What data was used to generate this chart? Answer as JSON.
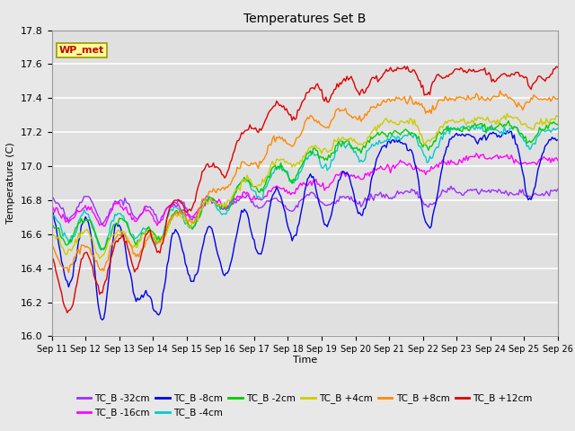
{
  "title": "Temperatures Set B",
  "xlabel": "Time",
  "ylabel": "Temperature (C)",
  "ylim": [
    16.0,
    17.8
  ],
  "y_ticks": [
    16.0,
    16.2,
    16.4,
    16.6,
    16.8,
    17.0,
    17.2,
    17.4,
    17.6,
    17.8
  ],
  "x_tick_labels": [
    "Sep 11",
    "Sep 12",
    "Sep 13",
    "Sep 14",
    "Sep 15",
    "Sep 16",
    "Sep 17",
    "Sep 18",
    "Sep 19",
    "Sep 20",
    "Sep 21",
    "Sep 22",
    "Sep 23",
    "Sep 24",
    "Sep 25",
    "Sep 26"
  ],
  "series": [
    {
      "label": "TC_B -32cm",
      "color": "#9b30ff"
    },
    {
      "label": "TC_B -16cm",
      "color": "#ff00ff"
    },
    {
      "label": "TC_B -8cm",
      "color": "#0000ee"
    },
    {
      "label": "TC_B -4cm",
      "color": "#00cccc"
    },
    {
      "label": "TC_B -2cm",
      "color": "#00cc00"
    },
    {
      "label": "TC_B +4cm",
      "color": "#cccc00"
    },
    {
      "label": "TC_B +8cm",
      "color": "#ff8800"
    },
    {
      "label": "TC_B +12cm",
      "color": "#dd0000"
    }
  ],
  "wp_met_box_facecolor": "#ffff99",
  "wp_met_text_color": "#cc0000",
  "wp_met_edge_color": "#999900",
  "fig_facecolor": "#e8e8e8",
  "axes_facecolor": "#e0e0e0",
  "grid_color": "#ffffff",
  "linewidth": 1.0,
  "legend_ncol": 6,
  "title_fontsize": 10,
  "tick_fontsize": 7,
  "ylabel_fontsize": 8
}
